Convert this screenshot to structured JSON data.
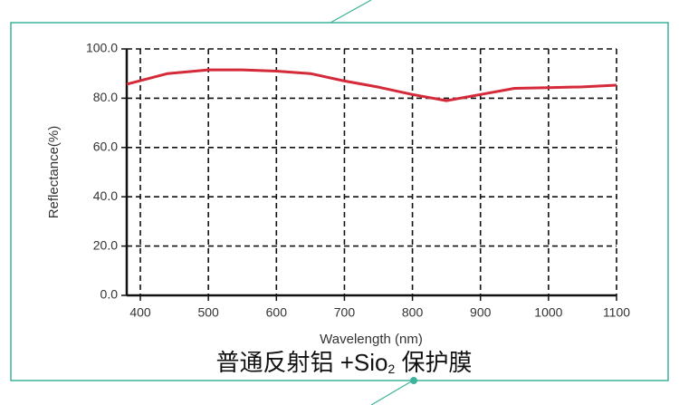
{
  "chart_data": {
    "type": "line",
    "xlabel": "Wavelength (nm)",
    "ylabel": "Reflectance(%)",
    "caption": [
      "普通反射铝 +Sio",
      "2",
      " 保护膜"
    ],
    "x": [
      380,
      440,
      500,
      550,
      600,
      650,
      700,
      750,
      800,
      850,
      900,
      950,
      1000,
      1050,
      1100
    ],
    "values": [
      85.7,
      90,
      91.5,
      91.5,
      91,
      90,
      87,
      84.5,
      81.5,
      79,
      81.5,
      84,
      84.3,
      84.6,
      85.3
    ],
    "color": "#d42a3a",
    "xlim": [
      380,
      1100
    ],
    "xticks": [
      400,
      500,
      600,
      700,
      800,
      900,
      1000,
      1100
    ],
    "ylim": [
      0,
      100
    ],
    "yticks": [
      {
        "value": 0,
        "label": "0.0"
      },
      {
        "value": 20,
        "label": "20.0"
      },
      {
        "value": 40,
        "label": "40.0"
      },
      {
        "value": 60,
        "label": "60.0"
      },
      {
        "value": 80,
        "label": "80.0"
      },
      {
        "value": 100,
        "label": "100.0"
      }
    ],
    "grid": true
  }
}
